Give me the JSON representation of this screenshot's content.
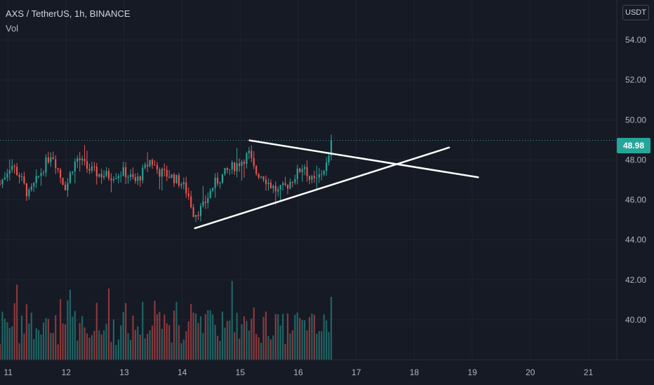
{
  "header": {
    "symbol_line": "AXS / TetherUS, 1h, BINANCE",
    "indicator": "Vol"
  },
  "price_scale": {
    "currency_label": "USDT"
  },
  "colors": {
    "up": "#26a69a",
    "down": "#ef5350",
    "background": "#161a25",
    "trendline": "#ffffff"
  },
  "chart_data": {
    "type": "candlestick",
    "title": "AXS / TetherUS, 1h, BINANCE",
    "yaxis": {
      "ticks": [
        40.0,
        42.0,
        44.0,
        46.0,
        48.0,
        50.0,
        52.0,
        54.0
      ],
      "range": [
        38.0,
        56.0
      ],
      "position": "right"
    },
    "xaxis": {
      "ticks": [
        "11",
        "12",
        "13",
        "14",
        "15",
        "16",
        "17",
        "18",
        "19",
        "20",
        "21"
      ],
      "range": [
        10.86,
        21.49
      ]
    },
    "last_price": "48.98",
    "grid": true,
    "series": [
      {
        "name": "AXS/USDT",
        "kind": "candles",
        "waypoints": [
          [
            10.86,
            46.8
          ],
          [
            11.05,
            47.8
          ],
          [
            11.2,
            47.2
          ],
          [
            11.35,
            46.2
          ],
          [
            11.55,
            47.3
          ],
          [
            11.75,
            48.4
          ],
          [
            11.9,
            47.2
          ],
          [
            12.0,
            46.6
          ],
          [
            12.1,
            47.6
          ],
          [
            12.2,
            48.1
          ],
          [
            12.35,
            47.6
          ],
          [
            12.55,
            47.3
          ],
          [
            12.75,
            47.2
          ],
          [
            13.0,
            47.4
          ],
          [
            13.2,
            46.9
          ],
          [
            13.35,
            47.5
          ],
          [
            13.45,
            48.0
          ],
          [
            13.6,
            47.4
          ],
          [
            13.8,
            47.2
          ],
          [
            14.0,
            46.8
          ],
          [
            14.1,
            46.3
          ],
          [
            14.2,
            45.3
          ],
          [
            14.35,
            45.6
          ],
          [
            14.55,
            46.8
          ],
          [
            14.8,
            47.5
          ],
          [
            15.0,
            47.9
          ],
          [
            15.15,
            48.3
          ],
          [
            15.25,
            47.4
          ],
          [
            15.4,
            47.2
          ],
          [
            15.5,
            46.8
          ],
          [
            15.65,
            46.4
          ],
          [
            15.8,
            46.7
          ],
          [
            16.0,
            47.4
          ],
          [
            16.1,
            47.8
          ],
          [
            16.2,
            47.0
          ],
          [
            16.3,
            46.9
          ],
          [
            16.45,
            47.6
          ],
          [
            16.52,
            47.9
          ],
          [
            16.58,
            48.98
          ]
        ]
      },
      {
        "name": "Vol",
        "kind": "volume"
      }
    ],
    "annotations": [
      {
        "kind": "trendline",
        "from": [
          15.16,
          48.98
        ],
        "to": [
          19.1,
          47.13
        ]
      },
      {
        "kind": "trendline",
        "from": [
          14.22,
          44.58
        ],
        "to": [
          18.6,
          48.62
        ]
      }
    ]
  }
}
